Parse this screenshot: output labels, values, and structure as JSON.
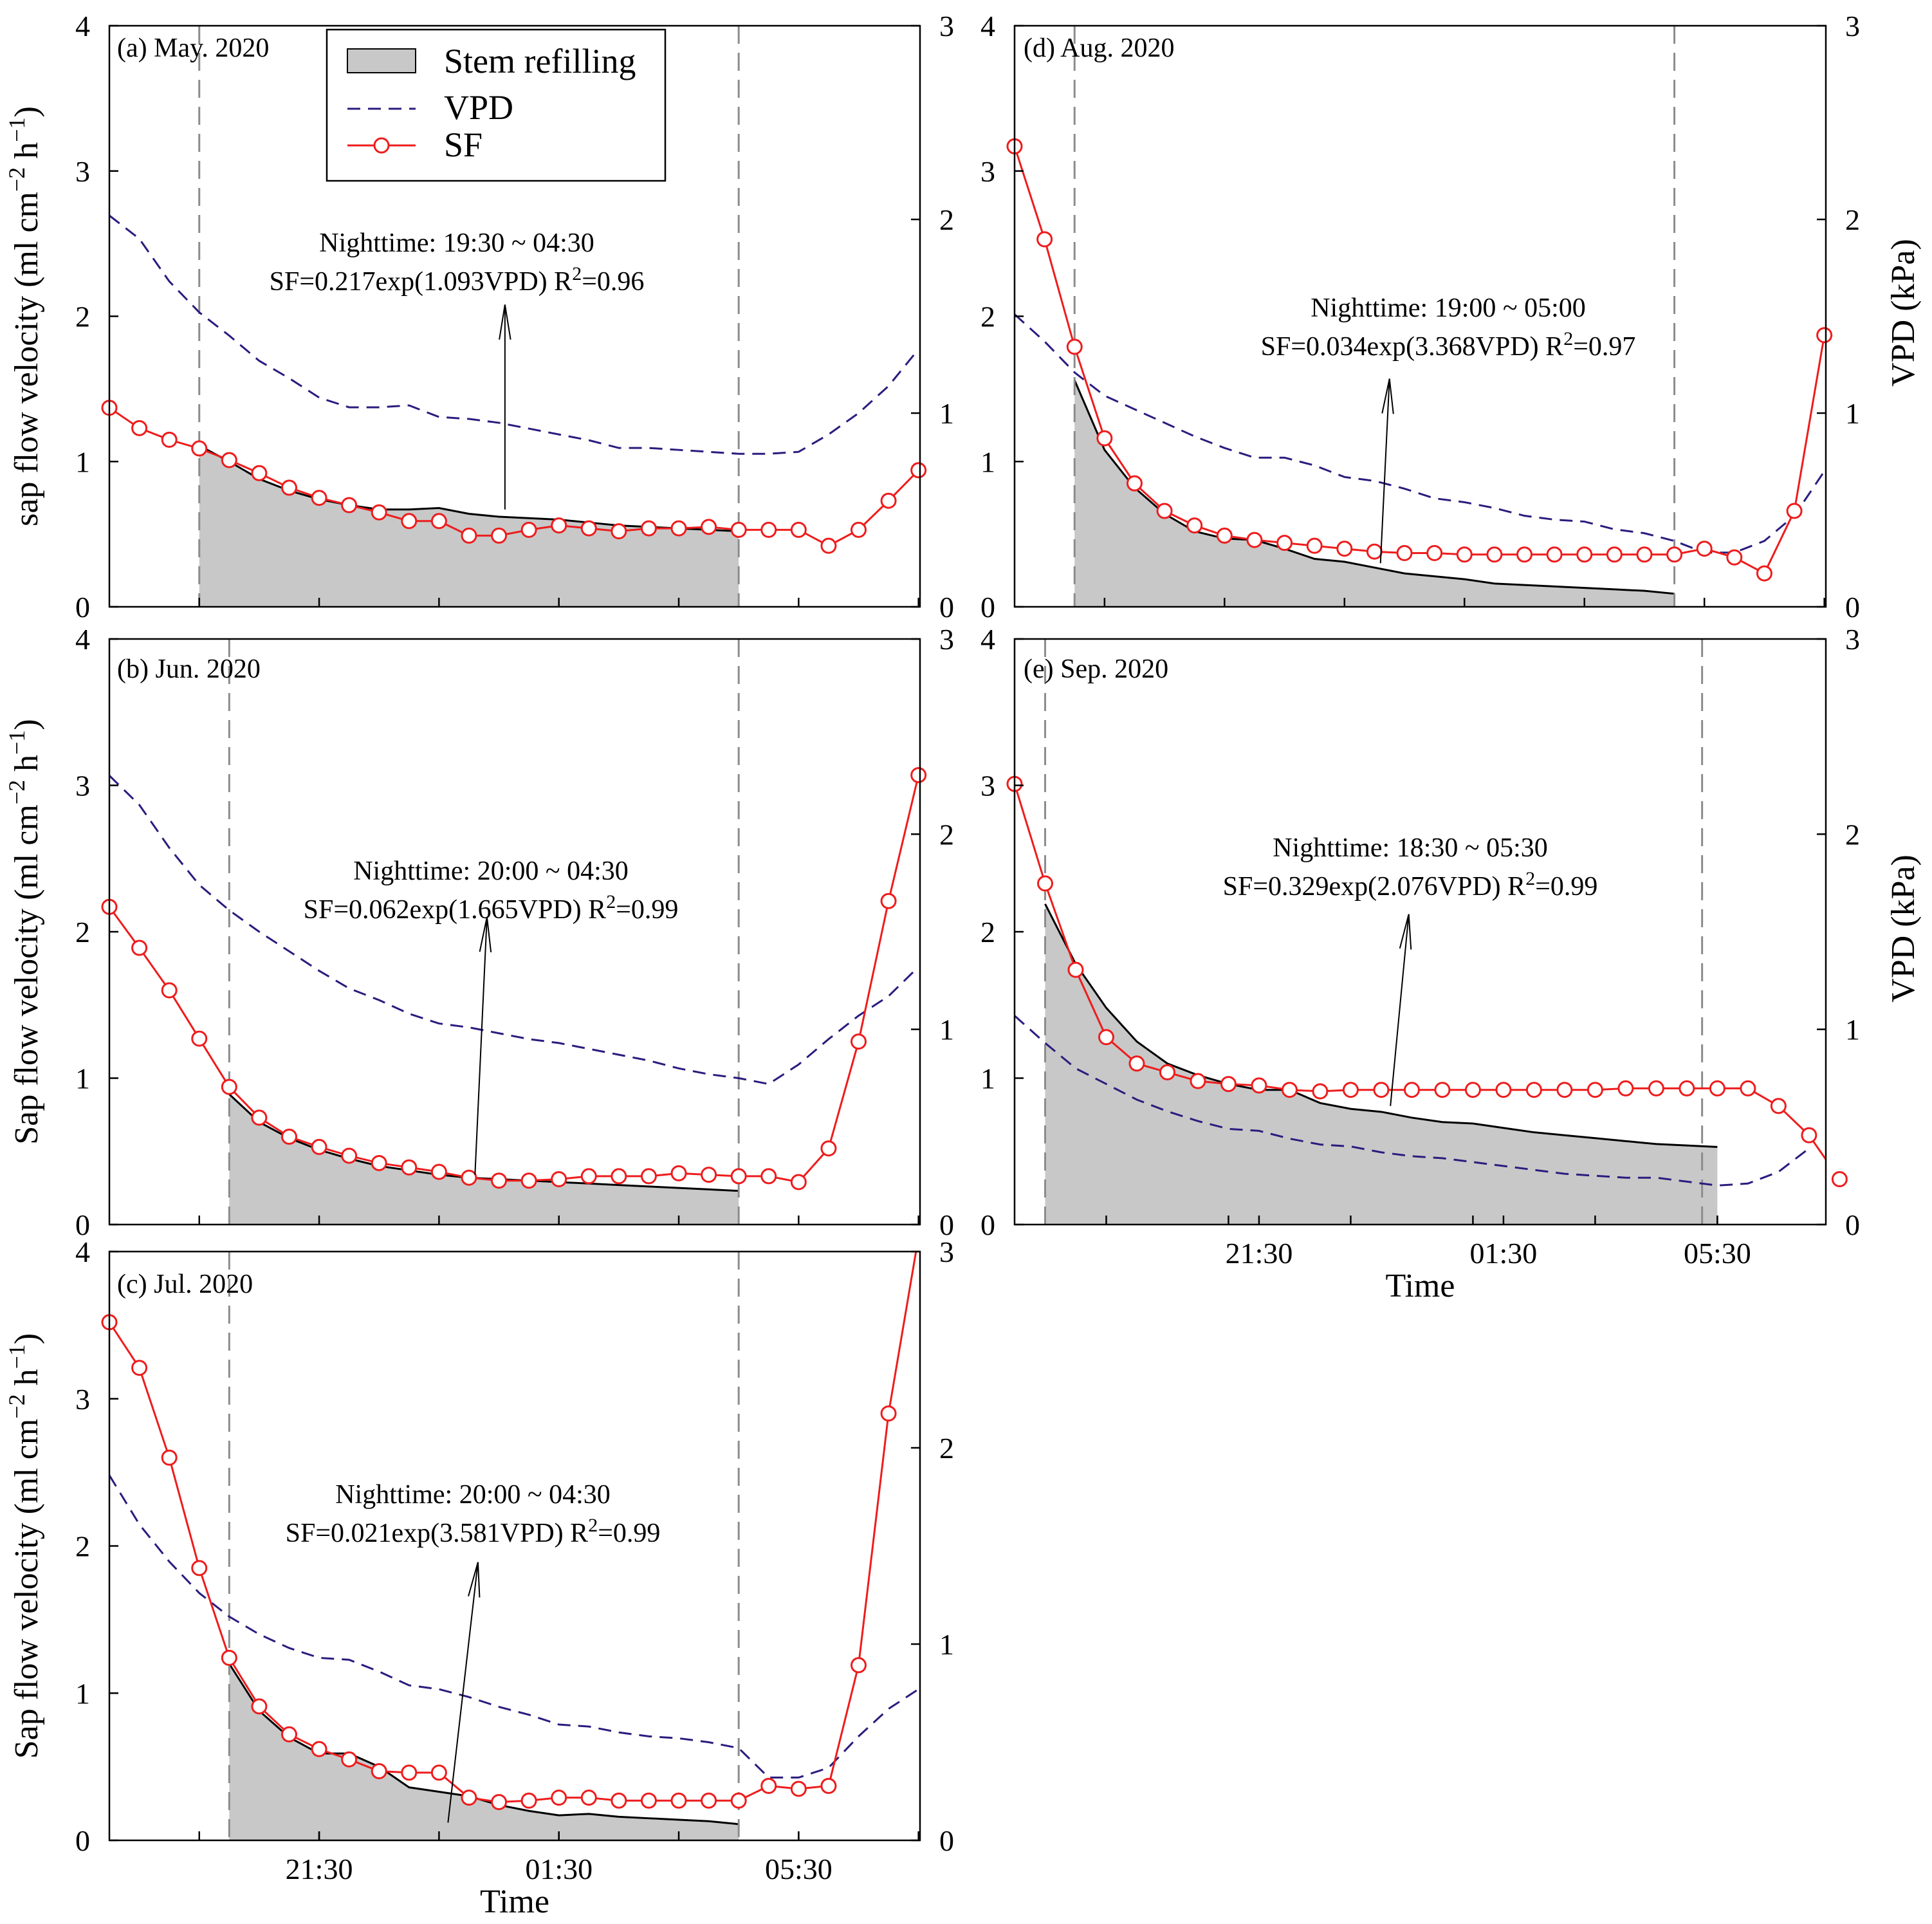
{
  "colors": {
    "sf": "#ee1c1c",
    "vpd": "#2a1c7e",
    "refill_fill": "#c8c8c8",
    "refill_edge": "#000000",
    "vline": "#8c8c8c"
  },
  "legend": {
    "refill_label": "Stem refilling",
    "vpd_label": "VPD",
    "sf_label": "SF"
  },
  "axis_titles": {
    "time": "Time",
    "vpd": "VPD (kPa)"
  },
  "chart_data": [
    {
      "id": "a",
      "type": "line",
      "title": "(a) May. 2020",
      "ylabel_base": "sap flow velocity (ml cm",
      "xlabel": "",
      "ylim_left": [
        0,
        4
      ],
      "ylim_right": [
        0,
        3
      ],
      "yticks_left": [
        "0",
        "1",
        "2",
        "3",
        "4"
      ],
      "yticks_right": [
        "0",
        "1",
        "2",
        "3"
      ],
      "xticks": [],
      "xtick_labels": [],
      "x_range": [
        0,
        27
      ],
      "x_unit": "30-min steps",
      "night_start_label": "19:30",
      "night_end_label": "04:30",
      "night_start_x": 3,
      "night_end_x": 21,
      "annotation_line1": "Nighttime: 19:30 ~ 04:30",
      "annotation_eq": "SF=0.217exp(1.093VPD)  R",
      "annotation_r2": "=0.96",
      "arrow_from": [
        13.2,
        0.67
      ],
      "arrow_to": [
        13.2,
        2.08
      ],
      "series": [
        {
          "name": "SF",
          "axis": "left",
          "x_start": 0,
          "values": [
            1.37,
            1.23,
            1.15,
            1.09,
            1.01,
            0.92,
            0.82,
            0.75,
            0.7,
            0.65,
            0.59,
            0.59,
            0.49,
            0.49,
            0.53,
            0.56,
            0.54,
            0.52,
            0.54,
            0.54,
            0.55,
            0.53,
            0.53,
            0.53,
            0.42,
            0.53,
            0.73,
            0.94
          ]
        },
        {
          "name": "VPD",
          "axis": "right",
          "x_start": 0,
          "values": [
            2.02,
            1.9,
            1.68,
            1.52,
            1.4,
            1.27,
            1.18,
            1.08,
            1.03,
            1.03,
            1.04,
            0.98,
            0.97,
            0.95,
            0.92,
            0.89,
            0.86,
            0.82,
            0.82,
            0.81,
            0.8,
            0.79,
            0.79,
            0.8,
            0.89,
            1.0,
            1.14,
            1.33
          ]
        },
        {
          "name": "Stem refilling",
          "axis": "left",
          "x_start": 3,
          "values": [
            1.11,
            1.0,
            0.88,
            0.8,
            0.74,
            0.7,
            0.67,
            0.67,
            0.68,
            0.64,
            0.62,
            0.61,
            0.6,
            0.58,
            0.56,
            0.55,
            0.54,
            0.53,
            0.52
          ]
        }
      ]
    },
    {
      "id": "b",
      "type": "line",
      "title": "(b) Jun. 2020",
      "ylabel_base": "Sap flow velocity (ml cm",
      "xlabel": "",
      "ylim_left": [
        0,
        4
      ],
      "ylim_right": [
        0,
        3
      ],
      "yticks_left": [
        "0",
        "1",
        "2",
        "3",
        "4"
      ],
      "yticks_right": [
        "0",
        "1",
        "2",
        "3"
      ],
      "xticks": [],
      "xtick_labels": [],
      "x_range": [
        0,
        27
      ],
      "x_unit": "30-min steps",
      "night_start_label": "20:00",
      "night_end_label": "04:30",
      "night_start_x": 4,
      "night_end_x": 21,
      "annotation_line1": "Nighttime: 20:00 ~ 04:30",
      "annotation_eq": "SF=0.062exp(1.665VPD)  R",
      "annotation_r2": "=0.99",
      "arrow_from": [
        12.2,
        0.34
      ],
      "arrow_to": [
        12.6,
        2.1
      ],
      "series": [
        {
          "name": "SF",
          "axis": "left",
          "x_start": 0,
          "values": [
            2.17,
            1.89,
            1.6,
            1.27,
            0.94,
            0.73,
            0.6,
            0.53,
            0.47,
            0.42,
            0.39,
            0.36,
            0.32,
            0.3,
            0.3,
            0.31,
            0.33,
            0.33,
            0.33,
            0.35,
            0.34,
            0.33,
            0.33,
            0.29,
            0.52,
            1.25,
            2.21,
            3.07
          ]
        },
        {
          "name": "VPD",
          "axis": "right",
          "x_start": 0,
          "values": [
            2.3,
            2.15,
            1.93,
            1.74,
            1.61,
            1.5,
            1.4,
            1.3,
            1.21,
            1.15,
            1.08,
            1.03,
            1.01,
            0.98,
            0.95,
            0.93,
            0.9,
            0.87,
            0.84,
            0.8,
            0.77,
            0.75,
            0.72,
            0.82,
            0.95,
            1.07,
            1.17,
            1.32
          ]
        },
        {
          "name": "Stem refilling",
          "axis": "left",
          "x_start": 4,
          "values": [
            0.89,
            0.7,
            0.59,
            0.51,
            0.45,
            0.4,
            0.37,
            0.34,
            0.32,
            0.31,
            0.3,
            0.29,
            0.28,
            0.27,
            0.26,
            0.25,
            0.24,
            0.23
          ]
        }
      ]
    },
    {
      "id": "c",
      "type": "line",
      "title": "(c) Jul. 2020",
      "ylabel_base": "Sap flow velocity (ml cm",
      "xlabel": "Time",
      "ylim_left": [
        0,
        4
      ],
      "ylim_right": [
        0,
        3
      ],
      "yticks_left": [
        "0",
        "1",
        "2",
        "3",
        "4"
      ],
      "yticks_right": [
        "0",
        "1",
        "2",
        "3"
      ],
      "xticks": [
        7,
        15,
        23
      ],
      "xtick_labels": [
        "21:30",
        "01:30",
        "05:30"
      ],
      "x_range": [
        0,
        27
      ],
      "x_unit": "30-min steps",
      "night_start_label": "20:00",
      "night_end_label": "04:30",
      "night_start_x": 4,
      "night_end_x": 21,
      "annotation_line1": "Nighttime: 20:00 ~ 04:30",
      "annotation_eq": "SF=0.021exp(3.581VPD)  R",
      "annotation_r2": "=0.99",
      "arrow_from": [
        11.3,
        0.12
      ],
      "arrow_to": [
        12.3,
        1.89
      ],
      "series": [
        {
          "name": "SF",
          "axis": "left",
          "x_start": 0,
          "values": [
            3.52,
            3.21,
            2.6,
            1.85,
            1.24,
            0.91,
            0.72,
            0.62,
            0.55,
            0.47,
            0.46,
            0.46,
            0.29,
            0.26,
            0.27,
            0.29,
            0.29,
            0.27,
            0.27,
            0.27,
            0.27,
            0.27,
            0.37,
            0.35,
            0.37,
            1.19,
            2.9,
            4.1
          ]
        },
        {
          "name": "VPD",
          "axis": "right",
          "x_start": 0,
          "values": [
            1.86,
            1.61,
            1.42,
            1.26,
            1.14,
            1.05,
            0.98,
            0.93,
            0.92,
            0.86,
            0.79,
            0.77,
            0.73,
            0.68,
            0.64,
            0.59,
            0.58,
            0.55,
            0.53,
            0.52,
            0.5,
            0.47,
            0.32,
            0.32,
            0.37,
            0.53,
            0.67,
            0.77
          ]
        },
        {
          "name": "Stem refilling",
          "axis": "left",
          "x_start": 4,
          "values": [
            1.2,
            0.88,
            0.7,
            0.59,
            0.59,
            0.5,
            0.36,
            0.33,
            0.3,
            0.24,
            0.2,
            0.17,
            0.18,
            0.16,
            0.15,
            0.14,
            0.13,
            0.11
          ]
        }
      ]
    },
    {
      "id": "d",
      "type": "line",
      "title": "(d) Aug. 2020",
      "ylabel_base": "",
      "xlabel": "",
      "ylim_left": [
        0,
        4
      ],
      "ylim_right": [
        0,
        3
      ],
      "yticks_left": [
        "0",
        "1",
        "2",
        "3",
        "4"
      ],
      "yticks_right": [
        "0",
        "1",
        "2",
        "3"
      ],
      "xticks": [],
      "xtick_labels": [],
      "x_range": [
        0,
        27
      ],
      "x_unit": "30-min steps",
      "night_start_label": "19:00",
      "night_end_label": "05:00",
      "night_start_x": 2,
      "night_end_x": 22,
      "annotation_line1": "Nighttime: 19:00 ~ 05:00",
      "annotation_eq": "SF=0.034exp(3.368VPD)  R",
      "annotation_r2": "=0.97",
      "arrow_from": [
        12.2,
        0.3
      ],
      "arrow_to": [
        12.5,
        1.57
      ],
      "series": [
        {
          "name": "SF",
          "axis": "left",
          "x_start": 0,
          "values": [
            3.17,
            2.53,
            1.79,
            1.16,
            0.85,
            0.66,
            0.56,
            0.49,
            0.46,
            0.44,
            0.42,
            0.4,
            0.38,
            0.37,
            0.37,
            0.36,
            0.36,
            0.36,
            0.36,
            0.36,
            0.36,
            0.36,
            0.36,
            0.4,
            0.34,
            0.23,
            0.66,
            1.87
          ]
        },
        {
          "name": "VPD",
          "axis": "right",
          "x_start": 0,
          "values": [
            1.51,
            1.37,
            1.21,
            1.09,
            1.02,
            0.95,
            0.88,
            0.82,
            0.77,
            0.77,
            0.73,
            0.67,
            0.65,
            0.61,
            0.56,
            0.54,
            0.51,
            0.47,
            0.45,
            0.44,
            0.4,
            0.38,
            0.34,
            0.28,
            0.28,
            0.34,
            0.47,
            0.7
          ]
        },
        {
          "name": "Stem refilling",
          "axis": "left",
          "x_start": 2,
          "values": [
            1.56,
            1.08,
            0.82,
            0.64,
            0.52,
            0.47,
            0.46,
            0.4,
            0.33,
            0.31,
            0.27,
            0.23,
            0.21,
            0.19,
            0.16,
            0.15,
            0.14,
            0.13,
            0.12,
            0.11,
            0.09
          ]
        }
      ]
    },
    {
      "id": "e",
      "type": "line",
      "title": "(e) Sep. 2020",
      "ylabel_base": "",
      "xlabel": "Time",
      "ylim_left": [
        0,
        4
      ],
      "ylim_right": [
        0,
        3
      ],
      "yticks_left": [
        "0",
        "1",
        "2",
        "3",
        "4"
      ],
      "yticks_right": [
        "0",
        "1",
        "2",
        "3"
      ],
      "xticks": [
        8,
        16,
        23
      ],
      "xtick_labels": [
        "21:30",
        "01:30",
        "05:30"
      ],
      "x_range": [
        0,
        26.5
      ],
      "x_unit": "30-min steps",
      "night_start_label": "18:30",
      "night_end_label": "05:30",
      "night_start_x": 1,
      "night_end_x": 22.5,
      "annotation_line1": "Nighttime: 18:30 ~ 05:30",
      "annotation_eq": "SF=0.329exp(2.076VPD)  R",
      "annotation_r2": "=0.99",
      "arrow_from": [
        12.3,
        0.81
      ],
      "arrow_to": [
        12.9,
        2.12
      ],
      "series": [
        {
          "name": "SF",
          "axis": "left",
          "x_start": 0,
          "values": [
            3.01,
            2.33,
            1.74,
            1.28,
            1.1,
            1.04,
            0.98,
            0.96,
            0.95,
            0.92,
            0.91,
            0.92,
            0.92,
            0.92,
            0.92,
            0.92,
            0.92,
            0.92,
            0.92,
            0.92,
            0.93,
            0.93,
            0.93,
            0.93,
            0.93,
            0.81,
            0.61,
            0.31
          ]
        },
        {
          "name": "VPD",
          "axis": "right",
          "x_start": 0,
          "values": [
            1.07,
            0.93,
            0.8,
            0.72,
            0.64,
            0.58,
            0.53,
            0.49,
            0.48,
            0.44,
            0.41,
            0.4,
            0.37,
            0.35,
            0.34,
            0.32,
            0.3,
            0.28,
            0.26,
            0.25,
            0.24,
            0.24,
            0.22,
            0.2,
            0.21,
            0.27,
            0.39
          ]
        },
        {
          "name": "Stem refilling",
          "axis": "left",
          "x_start": 1,
          "values": [
            2.19,
            1.78,
            1.48,
            1.25,
            1.1,
            1.02,
            0.96,
            0.92,
            0.92,
            0.83,
            0.79,
            0.77,
            0.73,
            0.7,
            0.69,
            0.66,
            0.63,
            0.61,
            0.59,
            0.57,
            0.55,
            0.54,
            0.53
          ]
        }
      ]
    }
  ]
}
